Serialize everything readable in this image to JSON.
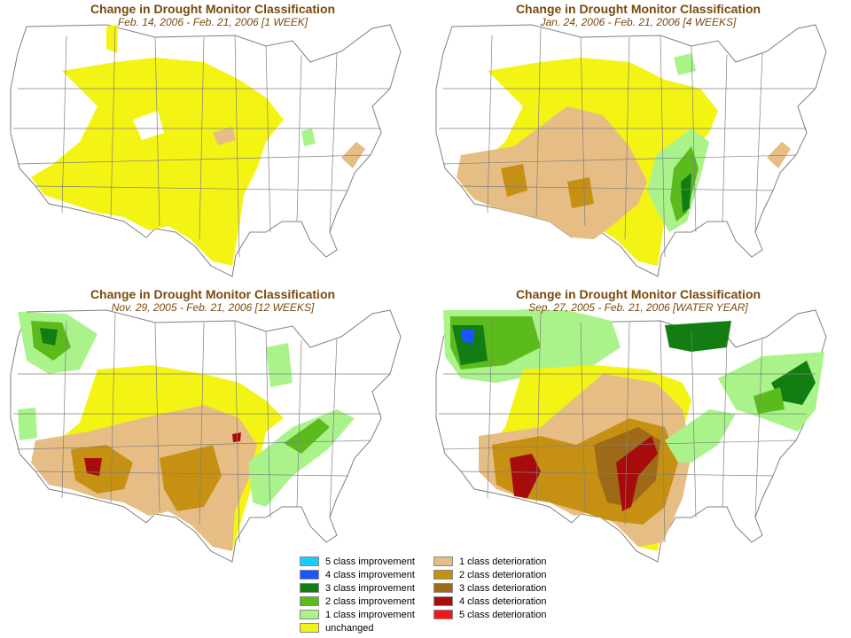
{
  "panels": [
    {
      "title": "Change in Drought Monitor Classification",
      "subtitle": "Feb. 14, 2006 - Feb. 21, 2006 [1 WEEK]"
    },
    {
      "title": "Change in Drought Monitor Classification",
      "subtitle": "Jan. 24, 2006 - Feb. 21, 2006 [4 WEEKS]"
    },
    {
      "title": "Change in Drought Monitor Classification",
      "subtitle": "Nov. 29, 2005 - Feb. 21, 2006 [12 WEEKS]"
    },
    {
      "title": "Change in Drought Monitor Classification",
      "subtitle": "Sep. 27, 2005 - Feb. 21, 2006 [WATER YEAR]"
    }
  ],
  "legend": {
    "left": [
      {
        "label": "5 class improvement",
        "color": "#19ccff"
      },
      {
        "label": "4 class improvement",
        "color": "#1a55ff"
      },
      {
        "label": "3 class improvement",
        "color": "#127d12"
      },
      {
        "label": "2 class improvement",
        "color": "#5cbb1c"
      },
      {
        "label": "1 class improvement",
        "color": "#aaf38a"
      },
      {
        "label": "unchanged",
        "color": "#f4f414"
      }
    ],
    "right": [
      {
        "label": "1 class deterioration",
        "color": "#e6bd84"
      },
      {
        "label": "2 class deterioration",
        "color": "#c69012"
      },
      {
        "label": "3 class deterioration",
        "color": "#9e6a18"
      },
      {
        "label": "4 class deterioration",
        "color": "#a80b0b"
      },
      {
        "label": "5 class deterioration",
        "color": "#f01818"
      }
    ]
  },
  "colors": {
    "title_text": "#7a4a0e",
    "state_lines": "#808080",
    "unchanged": "#f4f414",
    "improve1": "#aaf38a",
    "improve2": "#5cbb1c",
    "improve3": "#127d12",
    "improve4": "#1a55ff",
    "deter1": "#e6bd84",
    "deter2": "#c69012",
    "deter3": "#9e6a18",
    "deter4": "#a80b0b",
    "deter5": "#f01818"
  }
}
